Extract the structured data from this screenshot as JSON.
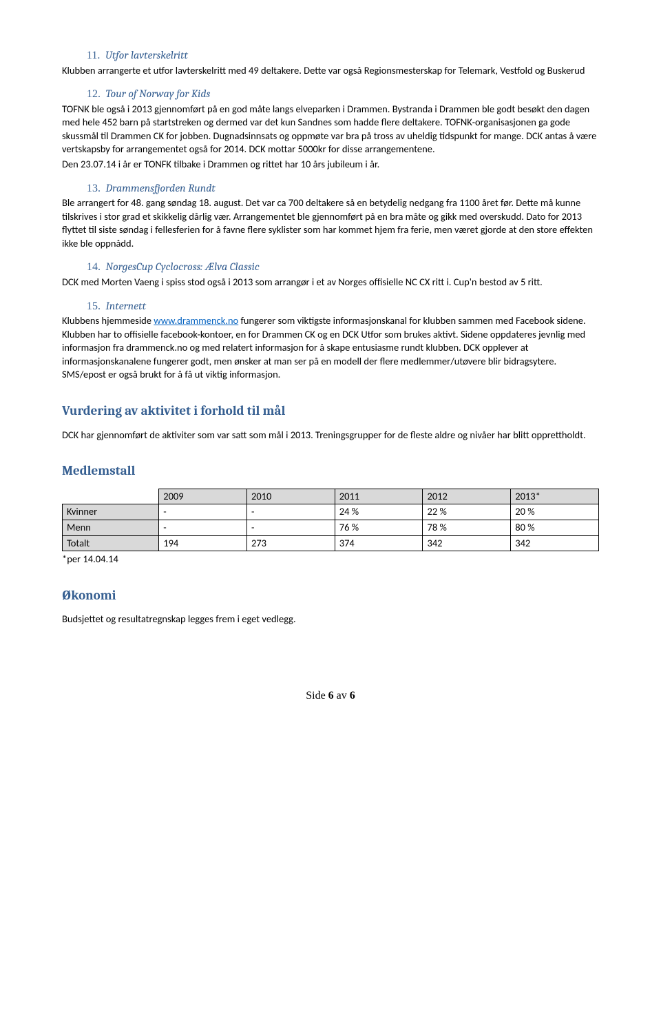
{
  "s11": {
    "num": "11.",
    "title": "Utfor lavterskelritt",
    "p": "Klubben arrangerte et utfor lavterskelritt med 49 deltakere. Dette var også Regionsmesterskap for Telemark, Vestfold og Buskerud"
  },
  "s12": {
    "num": "12.",
    "title": "Tour of Norway for Kids",
    "p": "TOFNK ble også i 2013 gjennomført på en god måte langs elveparken i Drammen. Bystranda i Drammen ble godt besøkt den dagen med hele 452 barn på startstreken og dermed var det kun Sandnes som hadde flere deltakere. TOFNK-organisasjonen ga gode skussmål til Drammen CK for jobben. Dugnadsinnsats og oppmøte var bra på tross av uheldig tidspunkt for mange. DCK antas å være vertskapsby for arrangementet også for 2014. DCK mottar 5000kr for disse arrangementene.",
    "p2": "Den 23.07.14 i år er TONFK tilbake i Drammen og rittet har 10 års jubileum i år."
  },
  "s13": {
    "num": "13.",
    "title": "Drammensfjorden Rundt",
    "p": "Ble arrangert for 48. gang søndag 18. august. Det var ca 700 deltakere så en betydelig nedgang fra 1100 året før. Dette må kunne tilskrives i stor grad et skikkelig dårlig vær. Arrangementet ble gjennomført på en bra måte og gikk med overskudd. Dato for 2013 flyttet til siste søndag i fellesferien for å favne flere syklister som har kommet hjem fra ferie, men været gjorde at den store effekten ikke ble oppnådd."
  },
  "s14": {
    "num": "14.",
    "title": "NorgesCup Cyclocross: Ælva Classic",
    "p": "DCK med Morten Vaeng i spiss stod også i 2013 som arrangør i et av Norges offisielle NC CX ritt i. Cup'n bestod av 5 ritt."
  },
  "s15": {
    "num": "15.",
    "title": "Internett",
    "p1a": "Klubbens hjemmeside ",
    "link_text": "www.drammenck.no",
    "link_href": "http://www.drammenck.no",
    "p1b": " fungerer som viktigste informasjonskanal for klubben sammen med Facebook sidene. Klubben har to offisielle facebook-kontoer, en for Drammen CK og en DCK Utfor som brukes aktivt. Sidene oppdateres jevnlig med informasjon fra drammenck.no og med relatert informasjon for å skape entusiasme rundt klubben. DCK opplever at informasjonskanalene fungerer godt, men ønsker at man ser på en modell der flere medlemmer/utøvere blir bidragsytere. SMS/epost er også brukt for å få ut viktig informasjon."
  },
  "vurdering": {
    "h": "Vurdering av aktivitet i forhold til mål",
    "p": "DCK har gjennomført de aktiviter som var satt som mål i 2013. Treningsgrupper for de fleste aldre og nivåer har blitt opprettholdt."
  },
  "medlem": {
    "h": "Medlemstall",
    "columns": [
      "",
      "2009",
      "2010",
      "2011",
      "2012",
      "2013*"
    ],
    "rows": [
      [
        "Kvinner",
        "-",
        "-",
        "24 %",
        "22 %",
        "20 %"
      ],
      [
        "Menn",
        "-",
        "-",
        "76 %",
        "78 %",
        "80 %"
      ],
      [
        "Totalt",
        "194",
        "273",
        "374",
        "342",
        "342"
      ]
    ],
    "footnote": "*per 14.04.14",
    "col_widths": [
      "18%",
      "16.4%",
      "16.4%",
      "16.4%",
      "16.4%",
      "16.4%"
    ],
    "header_bg": "#d9d9d9",
    "rowlabel_bg": "#d9d9d9",
    "border_color": "#000000"
  },
  "okonomi": {
    "h": "Økonomi",
    "p": "Budsjettet og resultatregnskap legges frem i eget vedlegg."
  },
  "footer": {
    "a": "Side ",
    "b": "6",
    "c": " av ",
    "d": "6"
  }
}
